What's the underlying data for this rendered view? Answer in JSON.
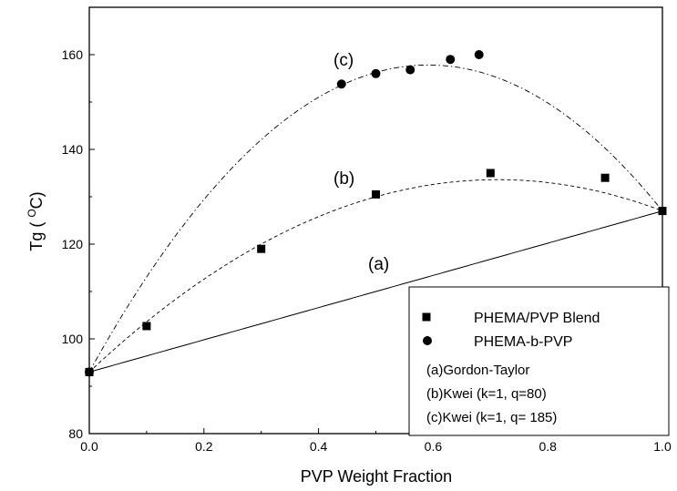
{
  "chart_data": {
    "type": "scatter",
    "xlabel": "PVP Weight Fraction",
    "ylabel_prefix": "Tg ( ",
    "ylabel_super": "O",
    "ylabel_suffix": "C)",
    "xlim": [
      0.0,
      1.0
    ],
    "ylim": [
      80,
      170
    ],
    "x_ticks": [
      0.0,
      0.2,
      0.4,
      0.6,
      0.8,
      1.0
    ],
    "x_tick_labels": [
      "0.0",
      "0.2",
      "0.4",
      "0.6",
      "0.8",
      "1.0"
    ],
    "y_ticks": [
      80,
      100,
      120,
      140,
      160
    ],
    "y_tick_labels": [
      "80",
      "100",
      "120",
      "140",
      "160"
    ],
    "grid": false,
    "legend_position": "bottom-right",
    "series": [
      {
        "name": "PHEMA/PVP Blend",
        "marker": "square",
        "x": [
          0.0,
          0.1,
          0.3,
          0.5,
          0.7,
          0.9,
          1.0
        ],
        "y": [
          93,
          102.7,
          119,
          130.5,
          135,
          134,
          127
        ]
      },
      {
        "name": "PHEMA-b-PVP",
        "marker": "circle",
        "x": [
          0.0,
          0.44,
          0.5,
          0.56,
          0.63,
          0.68
        ],
        "y": [
          93,
          153.8,
          156,
          156.8,
          159,
          160
        ]
      }
    ],
    "curves": [
      {
        "label": "(a)",
        "legend": "(a)Gordon-Taylor",
        "model": "gordon-taylor",
        "k": 1,
        "q": 0,
        "tg1": 93,
        "tg2": 127,
        "style": "solid"
      },
      {
        "label": "(b)",
        "legend": "(b)Kwei (k=1, q=80)",
        "model": "kwei",
        "k": 1,
        "q": 80,
        "tg1": 93,
        "tg2": 127,
        "style": "dash"
      },
      {
        "label": "(c)",
        "legend": "(c)Kwei (k=1, q= 185)",
        "model": "kwei",
        "k": 1,
        "q": 185,
        "tg1": 93,
        "tg2": 127,
        "style": "dashdot"
      }
    ]
  }
}
